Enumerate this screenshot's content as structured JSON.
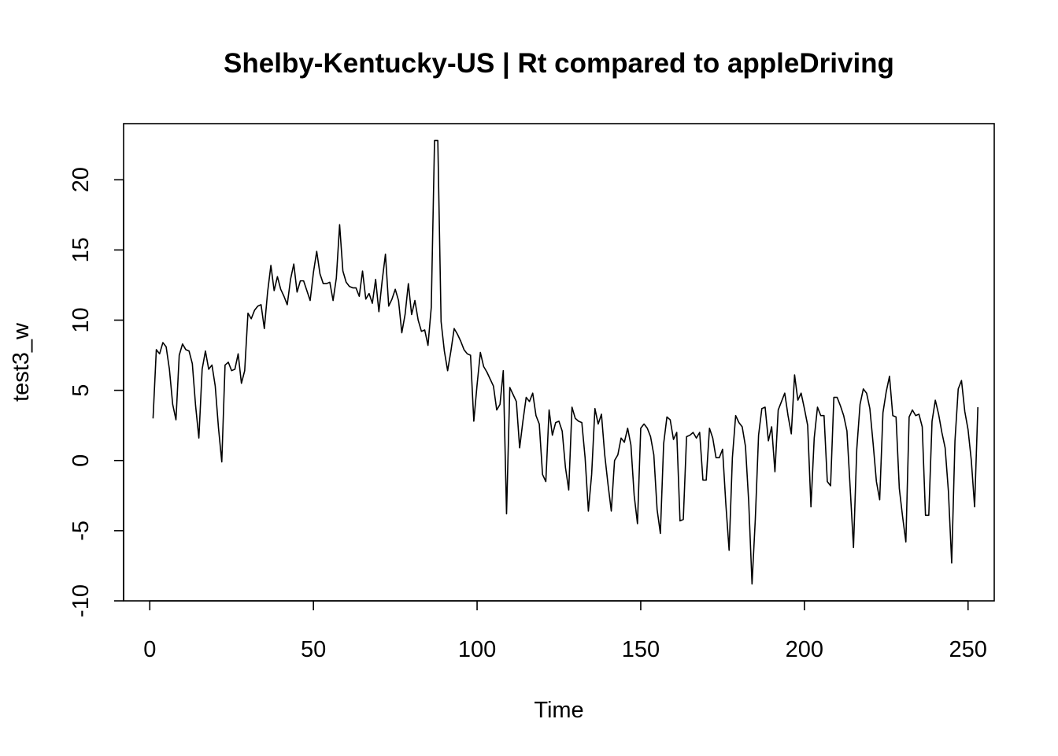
{
  "chart_data": {
    "type": "line",
    "title": "Shelby-Kentucky-US | Rt compared to appleDriving",
    "xlabel": "Time",
    "ylabel": "test3_w",
    "xlim": [
      -8,
      258
    ],
    "ylim": [
      -10,
      24
    ],
    "x_ticks": [
      0,
      50,
      100,
      150,
      200,
      250
    ],
    "y_ticks": [
      -10,
      -5,
      0,
      5,
      10,
      15,
      20
    ],
    "grid": false,
    "series": [
      {
        "name": "test3_w",
        "values": [
          3.0,
          7.9,
          7.6,
          8.4,
          8.1,
          6.5,
          4.0,
          2.9,
          7.5,
          8.3,
          7.9,
          7.8,
          6.9,
          3.9,
          1.6,
          6.5,
          7.8,
          6.5,
          6.8,
          5.3,
          2.3,
          -0.1,
          6.8,
          7.0,
          6.4,
          6.5,
          7.6,
          5.5,
          6.4,
          10.5,
          10.1,
          10.7,
          11.0,
          11.1,
          9.4,
          12.0,
          13.9,
          12.1,
          13.1,
          12.2,
          11.7,
          11.1,
          12.9,
          14.0,
          12.0,
          12.8,
          12.8,
          12.1,
          11.4,
          13.4,
          14.9,
          13.3,
          12.6,
          12.6,
          12.7,
          11.4,
          13.0,
          16.8,
          13.5,
          12.7,
          12.4,
          12.3,
          12.3,
          11.7,
          13.5,
          11.5,
          11.9,
          11.2,
          12.9,
          10.6,
          12.8,
          14.7,
          11.0,
          11.5,
          12.2,
          11.4,
          9.1,
          10.4,
          12.6,
          10.4,
          11.4,
          10.0,
          9.2,
          9.3,
          8.2,
          10.9,
          22.8,
          22.8,
          9.9,
          7.8,
          6.4,
          7.8,
          9.4,
          9.0,
          8.5,
          7.9,
          7.6,
          7.5,
          2.8,
          5.4,
          7.7,
          6.7,
          6.3,
          5.8,
          5.3,
          3.6,
          4.0,
          6.4,
          -3.8,
          5.2,
          4.7,
          4.2,
          0.9,
          2.8,
          4.5,
          4.2,
          4.8,
          3.2,
          2.6,
          -1.0,
          -1.5,
          3.6,
          1.8,
          2.7,
          2.8,
          2.1,
          -0.5,
          -2.1,
          3.8,
          3.0,
          2.8,
          2.7,
          0.2,
          -3.6,
          -1.0,
          3.7,
          2.6,
          3.3,
          0.4,
          -1.7,
          -3.6,
          0.0,
          0.4,
          1.6,
          1.3,
          2.3,
          1.1,
          -2.5,
          -4.5,
          2.3,
          2.6,
          2.3,
          1.7,
          0.4,
          -3.5,
          -5.2,
          1.2,
          3.1,
          2.9,
          1.5,
          2.0,
          -4.3,
          -4.2,
          1.7,
          1.8,
          2.0,
          1.6,
          2.0,
          -1.4,
          -1.4,
          2.3,
          1.6,
          0.2,
          0.2,
          0.8,
          -3.1,
          -6.4,
          0.2,
          3.2,
          2.7,
          2.4,
          1.0,
          -3.0,
          -8.8,
          -4.2,
          1.8,
          3.7,
          3.8,
          1.4,
          2.4,
          -0.8,
          3.6,
          4.2,
          4.8,
          3.2,
          1.9,
          6.1,
          4.3,
          4.8,
          3.7,
          2.5,
          -3.3,
          1.6,
          3.8,
          3.2,
          3.2,
          -1.5,
          -1.8,
          4.5,
          4.5,
          3.9,
          3.2,
          2.1,
          -2.0,
          -6.2,
          0.8,
          4.0,
          5.1,
          4.8,
          3.7,
          1.2,
          -1.5,
          -2.8,
          3.4,
          4.9,
          6.0,
          3.2,
          3.1,
          -2.0,
          -4.0,
          -5.8,
          3.1,
          3.6,
          3.2,
          3.3,
          2.4,
          -3.9,
          -3.9,
          2.8,
          4.3,
          3.3,
          2.0,
          0.9,
          -2.2,
          -7.3,
          1.4,
          5.1,
          5.7,
          3.5,
          2.2,
          0.0,
          -3.3,
          3.8
        ]
      }
    ]
  }
}
